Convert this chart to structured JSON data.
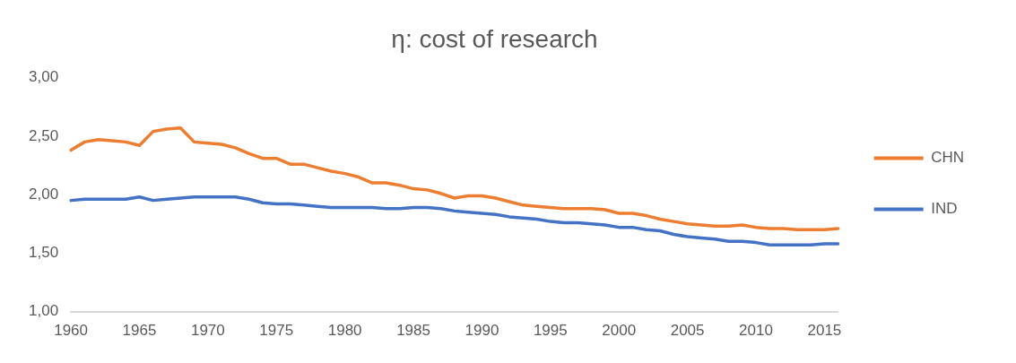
{
  "chart_data": {
    "type": "line",
    "title": "η: cost of research",
    "categories": [
      "1960",
      null,
      null,
      null,
      null,
      "1965",
      null,
      null,
      null,
      null,
      "1970",
      null,
      null,
      null,
      null,
      "1975",
      null,
      null,
      null,
      null,
      "1980",
      null,
      null,
      null,
      null,
      "1985",
      null,
      null,
      null,
      null,
      "1990",
      null,
      null,
      null,
      null,
      "1995",
      null,
      null,
      null,
      null,
      "2000",
      null,
      null,
      null,
      null,
      "2005",
      null,
      null,
      null,
      null,
      "2010",
      null,
      null,
      null,
      null,
      "2015",
      null
    ],
    "series": [
      {
        "name": "CHN",
        "color": "#ed7d31",
        "values": [
          2.38,
          2.45,
          2.47,
          2.46,
          2.45,
          2.42,
          2.54,
          2.56,
          2.57,
          2.45,
          2.44,
          2.43,
          2.4,
          2.35,
          2.31,
          2.31,
          2.26,
          2.26,
          2.23,
          2.2,
          2.18,
          2.15,
          2.1,
          2.1,
          2.08,
          2.05,
          2.04,
          2.01,
          1.97,
          1.99,
          1.99,
          1.97,
          1.94,
          1.91,
          1.9,
          1.89,
          1.88,
          1.88,
          1.88,
          1.87,
          1.84,
          1.84,
          1.82,
          1.79,
          1.77,
          1.75,
          1.74,
          1.73,
          1.73,
          1.74,
          1.72,
          1.71,
          1.71,
          1.7,
          1.7,
          1.7,
          1.71
        ]
      },
      {
        "name": "IND",
        "color": "#4472c4",
        "values": [
          1.95,
          1.96,
          1.96,
          1.96,
          1.96,
          1.98,
          1.95,
          1.96,
          1.97,
          1.98,
          1.98,
          1.98,
          1.98,
          1.96,
          1.93,
          1.92,
          1.92,
          1.91,
          1.9,
          1.89,
          1.89,
          1.89,
          1.89,
          1.88,
          1.88,
          1.89,
          1.89,
          1.88,
          1.86,
          1.85,
          1.84,
          1.83,
          1.81,
          1.8,
          1.79,
          1.77,
          1.76,
          1.76,
          1.75,
          1.74,
          1.72,
          1.72,
          1.7,
          1.69,
          1.66,
          1.64,
          1.63,
          1.62,
          1.6,
          1.6,
          1.59,
          1.57,
          1.57,
          1.57,
          1.57,
          1.58,
          1.58
        ]
      }
    ],
    "ylim": [
      1,
      3
    ],
    "yticks": [
      {
        "value": 1,
        "label": "1,00"
      },
      {
        "value": 1.5,
        "label": "1,50"
      },
      {
        "value": 2,
        "label": "2,00"
      },
      {
        "value": 2.5,
        "label": "2,50"
      },
      {
        "value": 3,
        "label": "3,00"
      }
    ],
    "grid": false,
    "legend": "right",
    "marker": "none",
    "line_style": "solid"
  }
}
